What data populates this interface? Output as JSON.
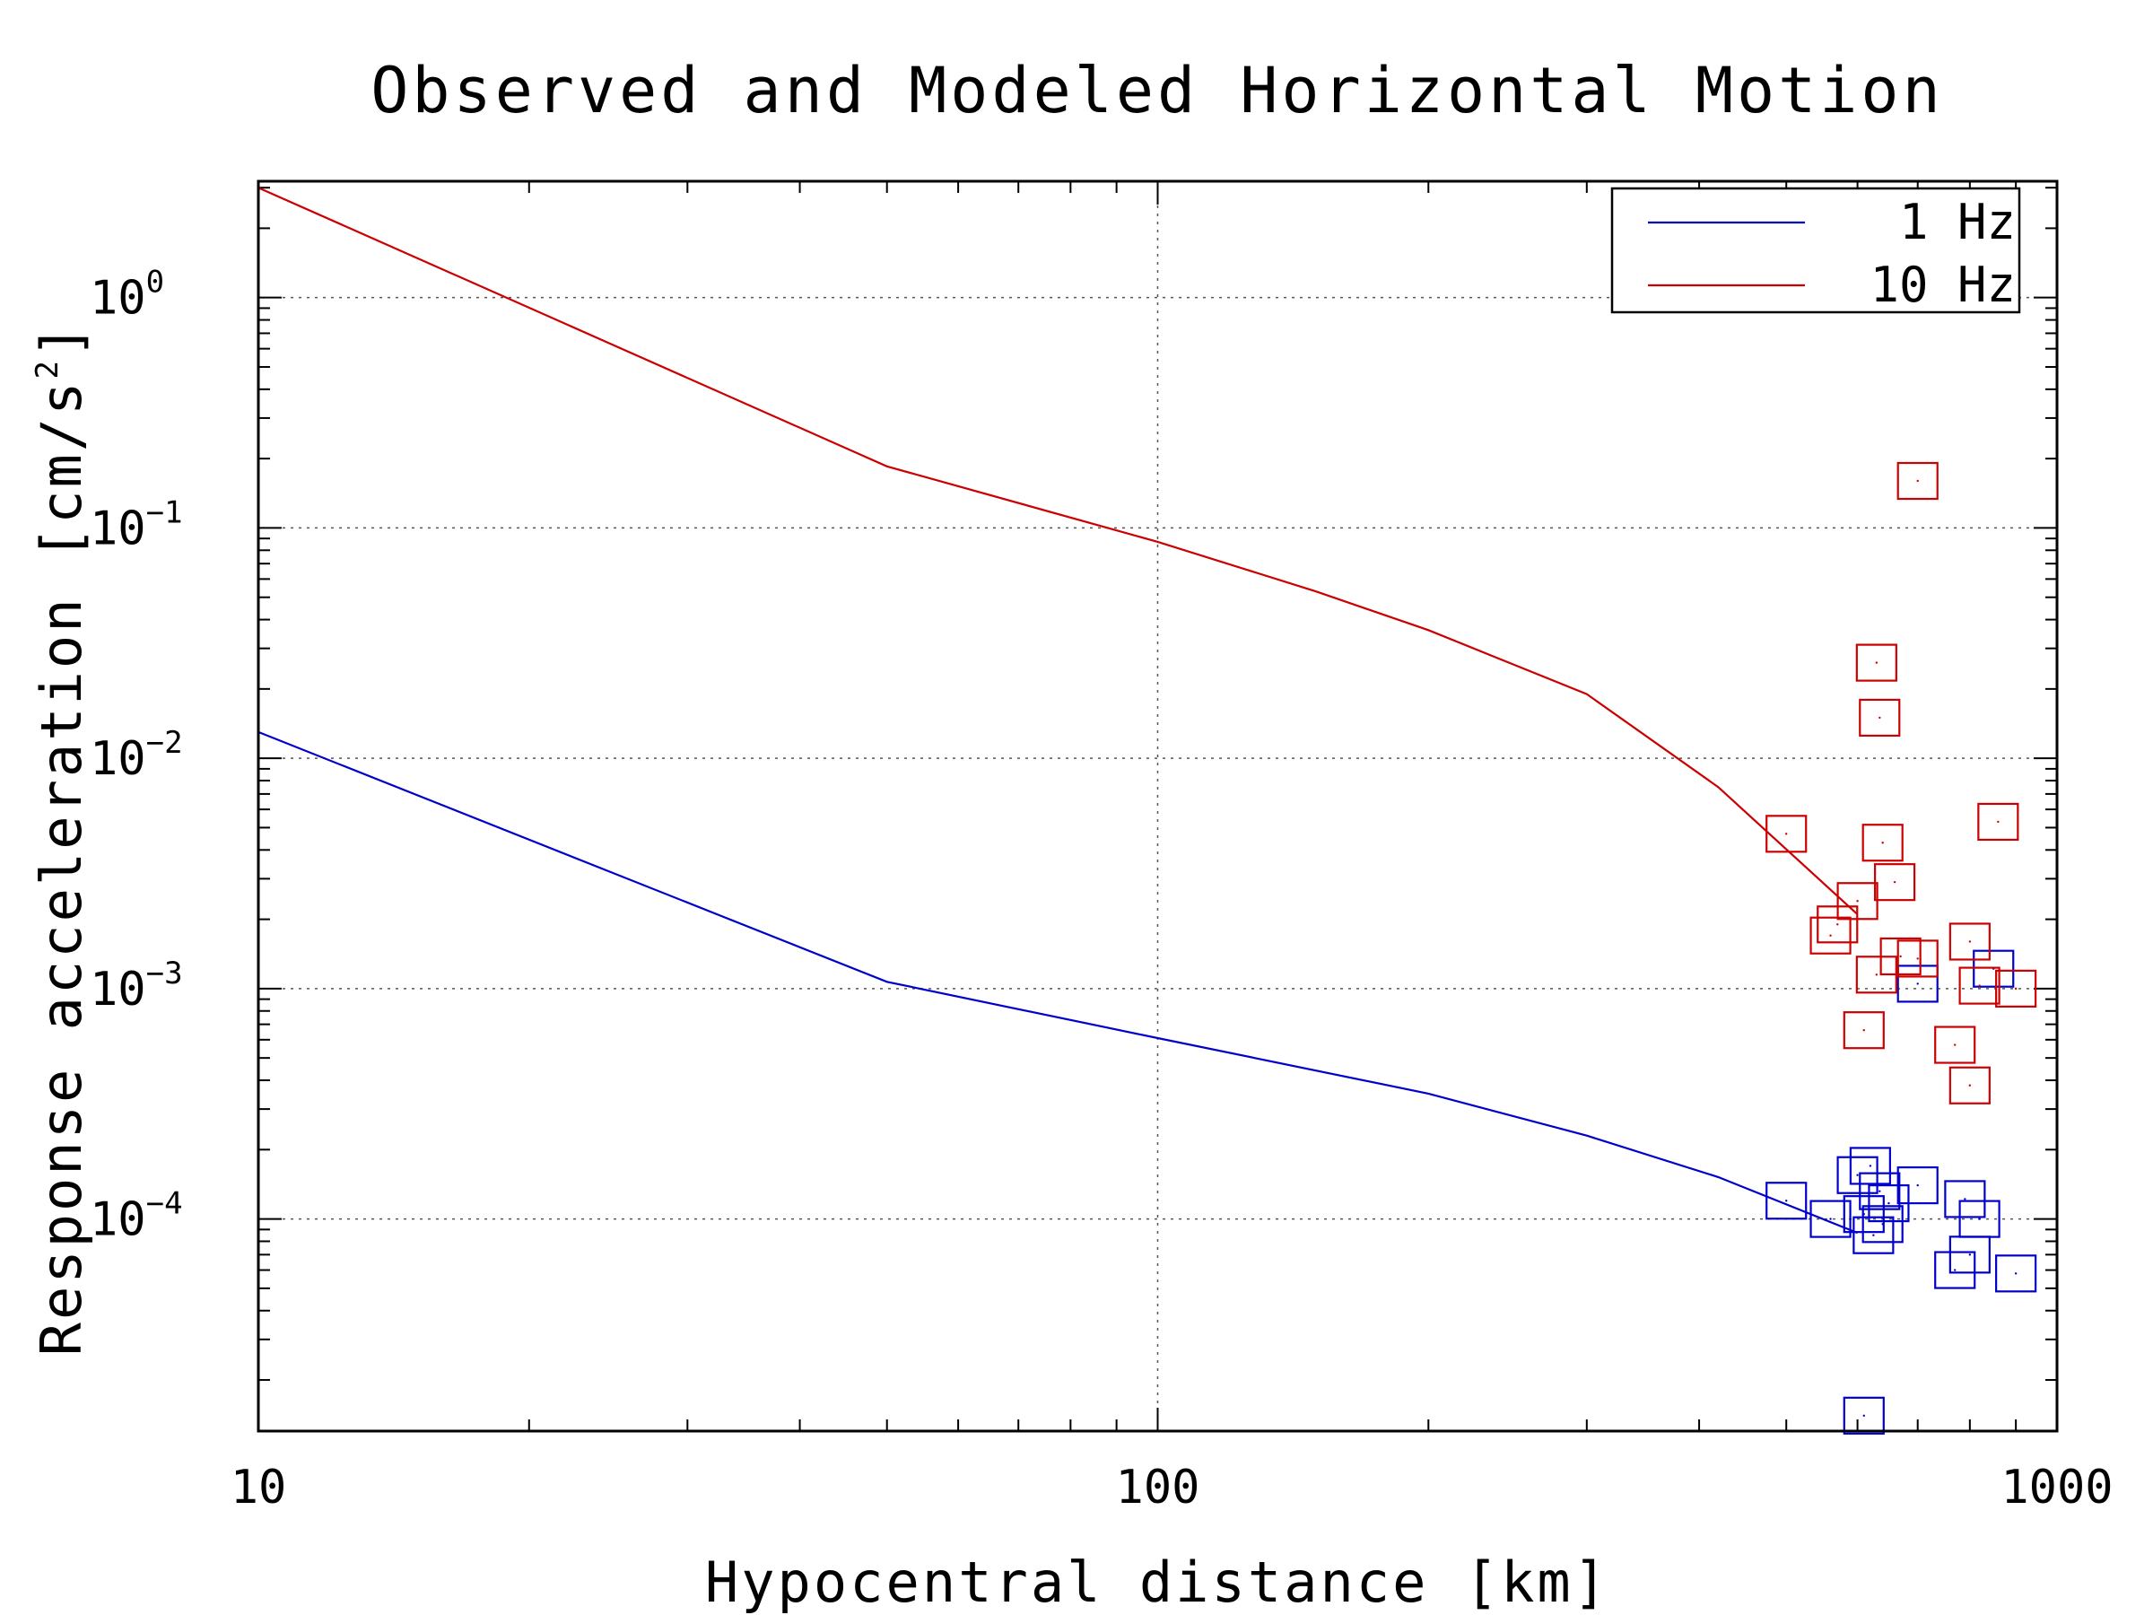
{
  "chart_data": {
    "type": "scatter",
    "title": "Observed and Modeled Horizontal Motion",
    "xlabel": "Hypocentral distance [km]",
    "ylabel": "Response acceleration [cm/s",
    "ylabel_sup": "2",
    "ylabel_end": "]",
    "x_scale": "log",
    "y_scale": "log",
    "xlim": [
      10,
      1000
    ],
    "ylim": [
      1.2e-05,
      3.2
    ],
    "grid": true,
    "legend_position": "top-right",
    "x_ticks": [
      {
        "value": 10,
        "label": "10"
      },
      {
        "value": 100,
        "label": "100"
      },
      {
        "value": 1000,
        "label": "1000"
      }
    ],
    "y_ticks": [
      {
        "value": 1,
        "base": "10",
        "exp": "0"
      },
      {
        "value": 0.1,
        "base": "10",
        "exp": "−1"
      },
      {
        "value": 0.01,
        "base": "10",
        "exp": "−2"
      },
      {
        "value": 0.001,
        "base": "10",
        "exp": "−3"
      },
      {
        "value": 0.0001,
        "base": "10",
        "exp": "−4"
      }
    ],
    "series": [
      {
        "name": "1 Hz",
        "color": "#0000cc",
        "line": [
          [
            10,
            0.013
          ],
          [
            50,
            0.00107
          ],
          [
            100,
            0.00061
          ],
          [
            200,
            0.00035
          ],
          [
            300,
            0.00023
          ],
          [
            420,
            0.000152
          ],
          [
            600,
            8.7e-05
          ]
        ],
        "points": [
          [
            500,
            0.00012
          ],
          [
            560,
            0.0001
          ],
          [
            600,
            0.000155
          ],
          [
            610,
            0.000105
          ],
          [
            620,
            0.00017
          ],
          [
            625,
            8.5e-05
          ],
          [
            635,
            0.000132
          ],
          [
            640,
            9.5e-05
          ],
          [
            650,
            0.000117
          ],
          [
            700,
            0.00014
          ],
          [
            700,
            0.00105
          ],
          [
            770,
            6e-05
          ],
          [
            790,
            0.000122
          ],
          [
            800,
            7e-05
          ],
          [
            820,
            0.0001
          ],
          [
            850,
            0.00122
          ],
          [
            900,
            5.8e-05
          ],
          [
            610,
            1.4e-05
          ]
        ]
      },
      {
        "name": "10 Hz",
        "color": "#cc0000",
        "line": [
          [
            10,
            3.0
          ],
          [
            50,
            0.185
          ],
          [
            100,
            0.087
          ],
          [
            150,
            0.053
          ],
          [
            200,
            0.036
          ],
          [
            300,
            0.019
          ],
          [
            420,
            0.0075
          ],
          [
            600,
            0.0021
          ]
        ],
        "points": [
          [
            700,
            0.16
          ],
          [
            630,
            0.026
          ],
          [
            635,
            0.015
          ],
          [
            500,
            0.0047
          ],
          [
            640,
            0.0043
          ],
          [
            660,
            0.0029
          ],
          [
            860,
            0.0053
          ],
          [
            560,
            0.0017
          ],
          [
            570,
            0.0019
          ],
          [
            600,
            0.0024
          ],
          [
            630,
            0.00115
          ],
          [
            670,
            0.00138
          ],
          [
            700,
            0.00135
          ],
          [
            800,
            0.0016
          ],
          [
            820,
            0.00103
          ],
          [
            900,
            0.001
          ],
          [
            610,
            0.00066
          ],
          [
            770,
            0.00057
          ],
          [
            800,
            0.00038
          ]
        ]
      }
    ]
  }
}
